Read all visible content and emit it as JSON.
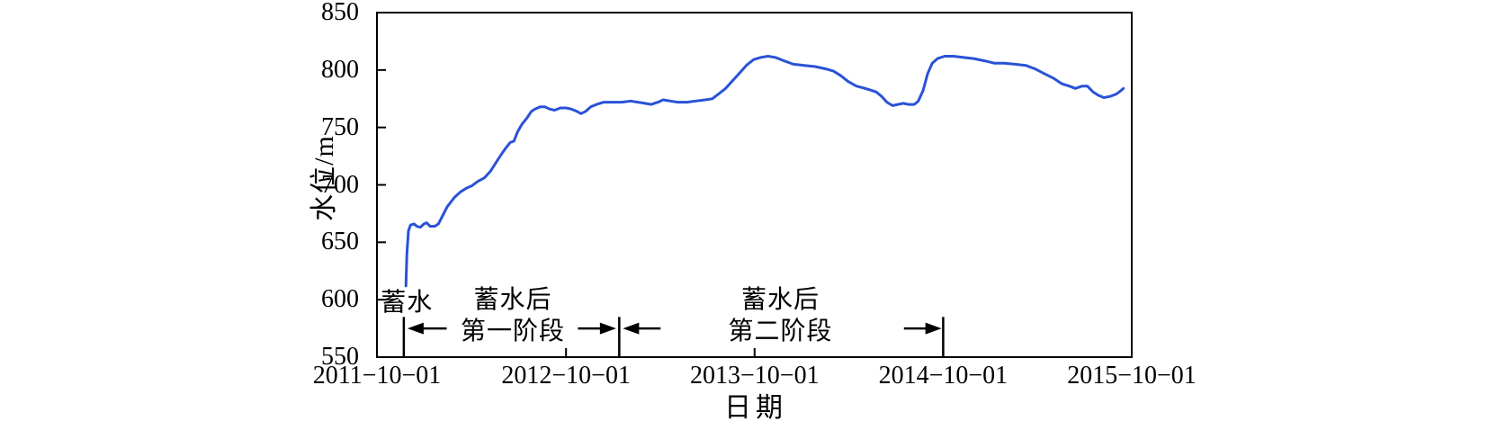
{
  "page": {
    "background": "#ffffff"
  },
  "chart_data": {
    "type": "line",
    "title": "",
    "xlabel": "日期",
    "ylabel": "水位/m",
    "x_range": [
      "2011-10-01",
      "2015-10-01"
    ],
    "ylim": [
      550,
      850
    ],
    "y_ticks": [
      550,
      600,
      650,
      700,
      750,
      800,
      850
    ],
    "x_ticks": [
      {
        "date": "2011-10-01",
        "label": "2011−10−01"
      },
      {
        "date": "2012-10-01",
        "label": "2012−10−01"
      },
      {
        "date": "2013-10-01",
        "label": "2013−10−01"
      },
      {
        "date": "2014-10-01",
        "label": "2014−10−01"
      },
      {
        "date": "2015-10-01",
        "label": "2015−10−01"
      }
    ],
    "grid": false,
    "legend": false,
    "axis_color": "#000000",
    "series": [
      {
        "name": "水位",
        "color": "#2a52d6",
        "line_width": 3,
        "points": [
          [
            "2011-11-26",
            612
          ],
          [
            "2011-11-28",
            640
          ],
          [
            "2011-12-01",
            660
          ],
          [
            "2011-12-05",
            665
          ],
          [
            "2011-12-12",
            666
          ],
          [
            "2011-12-17",
            664
          ],
          [
            "2011-12-24",
            663
          ],
          [
            "2011-12-31",
            666
          ],
          [
            "2012-01-05",
            667
          ],
          [
            "2012-01-12",
            664
          ],
          [
            "2012-01-21",
            664
          ],
          [
            "2012-01-28",
            666
          ],
          [
            "2012-02-05",
            673
          ],
          [
            "2012-02-14",
            681
          ],
          [
            "2012-02-28",
            689
          ],
          [
            "2012-03-11",
            694
          ],
          [
            "2012-03-22",
            697
          ],
          [
            "2012-04-01",
            699
          ],
          [
            "2012-04-13",
            703
          ],
          [
            "2012-04-26",
            706
          ],
          [
            "2012-05-08",
            712
          ],
          [
            "2012-05-22",
            722
          ],
          [
            "2012-05-31",
            728
          ],
          [
            "2012-06-08",
            733
          ],
          [
            "2012-06-15",
            737
          ],
          [
            "2012-06-22",
            738
          ],
          [
            "2012-06-29",
            746
          ],
          [
            "2012-07-08",
            753
          ],
          [
            "2012-07-17",
            758
          ],
          [
            "2012-07-26",
            764
          ],
          [
            "2012-08-02",
            766
          ],
          [
            "2012-08-12",
            768
          ],
          [
            "2012-08-21",
            768
          ],
          [
            "2012-08-30",
            766
          ],
          [
            "2012-09-09",
            765
          ],
          [
            "2012-09-20",
            767
          ],
          [
            "2012-10-01",
            767
          ],
          [
            "2012-10-11",
            766
          ],
          [
            "2012-10-22",
            764
          ],
          [
            "2012-10-30",
            762
          ],
          [
            "2012-11-08",
            764
          ],
          [
            "2012-11-18",
            768
          ],
          [
            "2012-11-29",
            770
          ],
          [
            "2012-12-13",
            772
          ],
          [
            "2012-12-30",
            772
          ],
          [
            "2013-01-17",
            772
          ],
          [
            "2013-02-03",
            773
          ],
          [
            "2013-02-17",
            772
          ],
          [
            "2013-03-03",
            771
          ],
          [
            "2013-03-15",
            770
          ],
          [
            "2013-03-28",
            772
          ],
          [
            "2013-04-07",
            774
          ],
          [
            "2013-04-21",
            773
          ],
          [
            "2013-05-05",
            772
          ],
          [
            "2013-05-23",
            772
          ],
          [
            "2013-06-09",
            773
          ],
          [
            "2013-06-27",
            774
          ],
          [
            "2013-07-11",
            775
          ],
          [
            "2013-07-23",
            779
          ],
          [
            "2013-08-06",
            784
          ],
          [
            "2013-08-18",
            790
          ],
          [
            "2013-09-01",
            797
          ],
          [
            "2013-09-15",
            804
          ],
          [
            "2013-09-29",
            809
          ],
          [
            "2013-10-13",
            811
          ],
          [
            "2013-10-27",
            812
          ],
          [
            "2013-11-10",
            811
          ],
          [
            "2013-11-27",
            808
          ],
          [
            "2013-12-15",
            805
          ],
          [
            "2014-01-05",
            804
          ],
          [
            "2014-01-26",
            803
          ],
          [
            "2014-02-16",
            801
          ],
          [
            "2014-03-03",
            799
          ],
          [
            "2014-03-17",
            795
          ],
          [
            "2014-03-31",
            790
          ],
          [
            "2014-04-16",
            786
          ],
          [
            "2014-05-03",
            784
          ],
          [
            "2014-05-24",
            781
          ],
          [
            "2014-06-04",
            777
          ],
          [
            "2014-06-14",
            772
          ],
          [
            "2014-06-25",
            769
          ],
          [
            "2014-07-05",
            770
          ],
          [
            "2014-07-16",
            771
          ],
          [
            "2014-07-26",
            770
          ],
          [
            "2014-08-06",
            770
          ],
          [
            "2014-08-14",
            773
          ],
          [
            "2014-08-23",
            782
          ],
          [
            "2014-09-01",
            797
          ],
          [
            "2014-09-10",
            806
          ],
          [
            "2014-09-20",
            810
          ],
          [
            "2014-10-04",
            812
          ],
          [
            "2014-10-21",
            812
          ],
          [
            "2014-11-08",
            811
          ],
          [
            "2014-11-29",
            810
          ],
          [
            "2014-12-20",
            808
          ],
          [
            "2015-01-08",
            806
          ],
          [
            "2015-01-27",
            806
          ],
          [
            "2015-02-17",
            805
          ],
          [
            "2015-03-10",
            804
          ],
          [
            "2015-03-28",
            801
          ],
          [
            "2015-04-14",
            797
          ],
          [
            "2015-05-02",
            793
          ],
          [
            "2015-05-19",
            788
          ],
          [
            "2015-06-02",
            786
          ],
          [
            "2015-06-14",
            784
          ],
          [
            "2015-06-27",
            786
          ],
          [
            "2015-07-07",
            786
          ],
          [
            "2015-07-18",
            781
          ],
          [
            "2015-07-28",
            778
          ],
          [
            "2015-08-08",
            776
          ],
          [
            "2015-08-20",
            777
          ],
          [
            "2015-09-01",
            779
          ],
          [
            "2015-09-10",
            782
          ],
          [
            "2015-09-15",
            784
          ]
        ]
      }
    ],
    "annotations": {
      "phase_labels": [
        {
          "text": "蓄水",
          "date": "2011-11-28",
          "level": 597
        },
        {
          "text": "蓄水后",
          "date": "2012-06-20",
          "level": 599
        },
        {
          "text": "第一阶段",
          "date": "2012-06-20",
          "level": 572
        },
        {
          "text": "蓄水后",
          "date": "2013-11-20",
          "level": 599
        },
        {
          "text": "第二阶段",
          "date": "2013-11-20",
          "level": 572
        }
      ],
      "boundary_markers": [
        {
          "date": "2011-11-22",
          "level_from": 550,
          "level_to": 585
        },
        {
          "date": "2013-01-12",
          "level_from": 550,
          "level_to": 585
        },
        {
          "date": "2014-10-01",
          "level_from": 550,
          "level_to": 585
        }
      ],
      "arrows": [
        {
          "tail_date": "2012-02-13",
          "head_date": "2011-11-29",
          "level": 575
        },
        {
          "tail_date": "2012-10-24",
          "head_date": "2013-01-06",
          "level": 575
        },
        {
          "tail_date": "2013-04-02",
          "head_date": "2013-01-19",
          "level": 575
        },
        {
          "tail_date": "2014-07-17",
          "head_date": "2014-09-28",
          "level": 575
        }
      ]
    }
  }
}
